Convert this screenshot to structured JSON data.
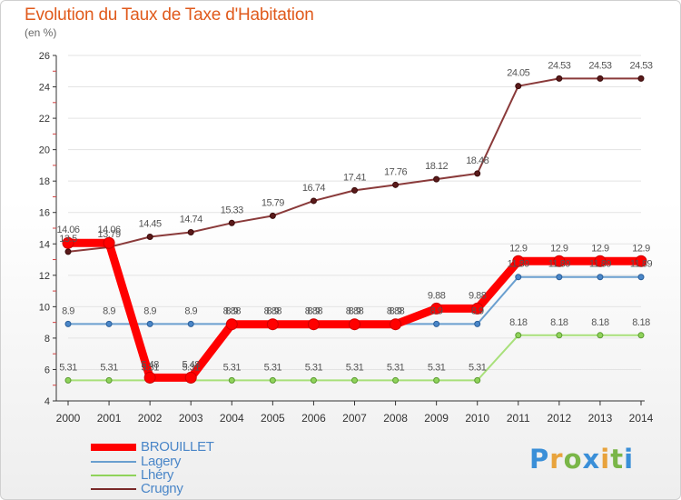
{
  "title": "Evolution du Taux de Taxe d'Habitation",
  "unit_label": "(en %)",
  "logo_text": "Proxiti",
  "chart_data": {
    "type": "line",
    "title": "Evolution du Taux de Taxe d'Habitation",
    "ylabel": "(en %)",
    "xlabel": "",
    "x": [
      "2000",
      "2001",
      "2002",
      "2003",
      "2004",
      "2005",
      "2006",
      "2007",
      "2008",
      "2009",
      "2010",
      "2011",
      "2012",
      "2013",
      "2014"
    ],
    "ylim": [
      4,
      26
    ],
    "yticks": [
      "4",
      "6",
      "8",
      "10",
      "12",
      "14",
      "16",
      "18",
      "20",
      "22",
      "24",
      "26"
    ],
    "grid": true,
    "legend_position": "bottom-left",
    "series": [
      {
        "name": "BROUILLET",
        "color": "#ff0000",
        "values": [
          14.06,
          14.06,
          5.48,
          5.48,
          8.88,
          8.88,
          8.88,
          8.88,
          8.88,
          9.88,
          9.88,
          12.9,
          12.9,
          12.9,
          12.9
        ],
        "labels": [
          "14.06",
          "14.06",
          "5.48",
          "5.48",
          "8.88",
          "8.88",
          "8.88",
          "8.88",
          "8.88",
          "9.88",
          "9.88",
          "12.9",
          "12.9",
          "12.9",
          "12.9"
        ]
      },
      {
        "name": "Lagery",
        "color": "#6a9fcf",
        "values": [
          8.9,
          8.9,
          8.9,
          8.9,
          8.9,
          8.9,
          8.9,
          8.9,
          8.9,
          8.9,
          8.9,
          11.89,
          11.89,
          11.89,
          11.89
        ],
        "labels": [
          "8.9",
          "8.9",
          "8.9",
          "8.9",
          "8.9",
          "8.9",
          "8.9",
          "8.9",
          "8.9",
          "8.9",
          "8.9",
          "11.89",
          "11.89",
          "11.89",
          "11.89"
        ]
      },
      {
        "name": "Lhéry",
        "color": "#8fd35a",
        "values": [
          5.31,
          5.31,
          5.31,
          5.31,
          5.31,
          5.31,
          5.31,
          5.31,
          5.31,
          5.31,
          5.31,
          8.18,
          8.18,
          8.18,
          8.18
        ],
        "labels": [
          "5.31",
          "5.31",
          "5.31",
          "5.31",
          "5.31",
          "5.31",
          "5.31",
          "5.31",
          "5.31",
          "5.31",
          "5.31",
          "8.18",
          "8.18",
          "8.18",
          "8.18"
        ]
      },
      {
        "name": "Crugny",
        "color": "#7a2a2a",
        "values": [
          13.5,
          13.79,
          14.45,
          14.74,
          15.33,
          15.79,
          16.74,
          17.41,
          17.76,
          18.12,
          18.48,
          24.05,
          24.53,
          24.53,
          24.53
        ],
        "labels": [
          "13.5",
          "13.79",
          "14.45",
          "14.74",
          "15.33",
          "15.79",
          "16.74",
          "17.41",
          "17.76",
          "18.12",
          "18.48",
          "24.05",
          "24.53",
          "24.53",
          "24.53"
        ]
      }
    ]
  }
}
